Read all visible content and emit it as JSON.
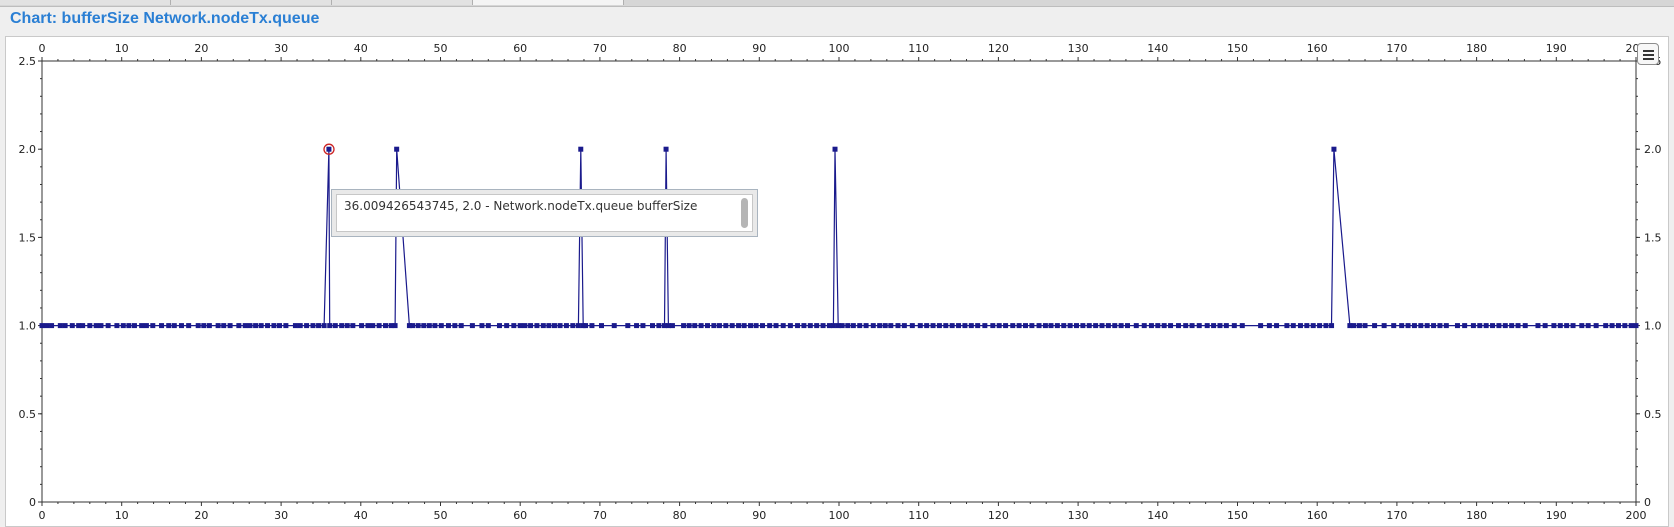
{
  "window": {
    "title": "Chart: bufferSize Network.nodeTx.queue"
  },
  "tooltip": {
    "text": "36.009426543745, 2.0 - Network.nodeTx.queue bufferSize"
  },
  "colors": {
    "series": "#1a1a8c",
    "grid": "#c8c8c8",
    "title": "#2a7fd4",
    "highlight": "#cc2222"
  },
  "chart_data": {
    "type": "line",
    "title": "",
    "xlabel": "",
    "ylabel": "",
    "xlim": [
      0,
      200
    ],
    "ylim": [
      0,
      2.5
    ],
    "xticks": [
      "0",
      "10",
      "20",
      "30",
      "40",
      "50",
      "60",
      "70",
      "80",
      "90",
      "100",
      "110",
      "120",
      "130",
      "140",
      "150",
      "160",
      "170",
      "180",
      "190",
      "200"
    ],
    "yticks": [
      "0",
      "0.5",
      "1.0",
      "1.5",
      "2.0",
      "2.5"
    ],
    "grid": true,
    "markers": "square",
    "series": [
      {
        "name": "Network.nodeTx.queue bufferSize",
        "points": [
          [
            0,
            1
          ],
          [
            0.6,
            1
          ],
          [
            1.2,
            1
          ],
          [
            2.3,
            1
          ],
          [
            2.9,
            1
          ],
          [
            3.8,
            1
          ],
          [
            4.6,
            1
          ],
          [
            5.1,
            1
          ],
          [
            6.0,
            1
          ],
          [
            6.8,
            1
          ],
          [
            7.4,
            1
          ],
          [
            8.3,
            1
          ],
          [
            9.4,
            1
          ],
          [
            10.2,
            1
          ],
          [
            10.9,
            1
          ],
          [
            11.6,
            1
          ],
          [
            12.5,
            1
          ],
          [
            13.1,
            1
          ],
          [
            13.9,
            1
          ],
          [
            15.0,
            1
          ],
          [
            15.9,
            1
          ],
          [
            16.6,
            1
          ],
          [
            17.5,
            1
          ],
          [
            18.4,
            1
          ],
          [
            19.6,
            1
          ],
          [
            20.3,
            1
          ],
          [
            21.0,
            1
          ],
          [
            22.1,
            1
          ],
          [
            22.8,
            1
          ],
          [
            23.6,
            1
          ],
          [
            24.7,
            1
          ],
          [
            25.5,
            1
          ],
          [
            26.1,
            1
          ],
          [
            26.8,
            1
          ],
          [
            27.5,
            1
          ],
          [
            28.3,
            1
          ],
          [
            29.1,
            1
          ],
          [
            29.8,
            1
          ],
          [
            30.6,
            1
          ],
          [
            31.8,
            1
          ],
          [
            32.4,
            1
          ],
          [
            33.2,
            1
          ],
          [
            34.0,
            1
          ],
          [
            34.7,
            1
          ],
          [
            35.4,
            1
          ],
          [
            36.0,
            2
          ],
          [
            36.1,
            1
          ],
          [
            36.8,
            1
          ],
          [
            37.6,
            1
          ],
          [
            38.3,
            1
          ],
          [
            39.0,
            1
          ],
          [
            40.1,
            1
          ],
          [
            40.9,
            1
          ],
          [
            41.5,
            1
          ],
          [
            42.3,
            1
          ],
          [
            43.1,
            1
          ],
          [
            43.8,
            1
          ],
          [
            44.3,
            1
          ],
          [
            44.5,
            2
          ],
          [
            46.1,
            1
          ],
          [
            46.5,
            1
          ],
          [
            47.2,
            1
          ],
          [
            47.9,
            1
          ],
          [
            48.6,
            1
          ],
          [
            49.3,
            1
          ],
          [
            50.1,
            1
          ],
          [
            51.0,
            1
          ],
          [
            51.8,
            1
          ],
          [
            52.6,
            1
          ],
          [
            54.0,
            1
          ],
          [
            55.2,
            1
          ],
          [
            56.0,
            1
          ],
          [
            57.4,
            1
          ],
          [
            58.3,
            1
          ],
          [
            59.2,
            1
          ],
          [
            60.0,
            1
          ],
          [
            60.6,
            1
          ],
          [
            61.3,
            1
          ],
          [
            62.1,
            1
          ],
          [
            62.9,
            1
          ],
          [
            63.6,
            1
          ],
          [
            64.3,
            1
          ],
          [
            65.0,
            1
          ],
          [
            65.8,
            1
          ],
          [
            66.6,
            1
          ],
          [
            67.3,
            1
          ],
          [
            67.6,
            2
          ],
          [
            67.9,
            1
          ],
          [
            68.2,
            1
          ],
          [
            69.0,
            1
          ],
          [
            70.2,
            1
          ],
          [
            71.8,
            1
          ],
          [
            73.5,
            1
          ],
          [
            74.6,
            1
          ],
          [
            75.4,
            1
          ],
          [
            76.6,
            1
          ],
          [
            77.4,
            1
          ],
          [
            78.1,
            1
          ],
          [
            78.3,
            2
          ],
          [
            78.6,
            1
          ],
          [
            79.1,
            1
          ],
          [
            80.5,
            1
          ],
          [
            81.2,
            1
          ],
          [
            81.9,
            1
          ],
          [
            82.7,
            1
          ],
          [
            83.5,
            1
          ],
          [
            84.3,
            1
          ],
          [
            85.0,
            1
          ],
          [
            85.8,
            1
          ],
          [
            86.6,
            1
          ],
          [
            87.4,
            1
          ],
          [
            88.1,
            1
          ],
          [
            88.9,
            1
          ],
          [
            89.6,
            1
          ],
          [
            90.4,
            1
          ],
          [
            91.3,
            1
          ],
          [
            92.1,
            1
          ],
          [
            93.0,
            1
          ],
          [
            93.9,
            1
          ],
          [
            94.8,
            1
          ],
          [
            95.6,
            1
          ],
          [
            96.4,
            1
          ],
          [
            97.2,
            1
          ],
          [
            98.0,
            1
          ],
          [
            98.8,
            1
          ],
          [
            99.3,
            1
          ],
          [
            99.5,
            2
          ],
          [
            99.9,
            1
          ],
          [
            100.4,
            1
          ],
          [
            101.1,
            1
          ],
          [
            101.8,
            1
          ],
          [
            102.6,
            1
          ],
          [
            103.4,
            1
          ],
          [
            104.3,
            1
          ],
          [
            105.1,
            1
          ],
          [
            105.8,
            1
          ],
          [
            106.5,
            1
          ],
          [
            107.4,
            1
          ],
          [
            108.2,
            1
          ],
          [
            109.2,
            1
          ],
          [
            110.2,
            1
          ],
          [
            111.0,
            1
          ],
          [
            111.8,
            1
          ],
          [
            112.6,
            1
          ],
          [
            113.4,
            1
          ],
          [
            114.2,
            1
          ],
          [
            115.0,
            1
          ],
          [
            115.8,
            1
          ],
          [
            116.6,
            1
          ],
          [
            117.4,
            1
          ],
          [
            118.3,
            1
          ],
          [
            119.3,
            1
          ],
          [
            120.1,
            1
          ],
          [
            120.9,
            1
          ],
          [
            121.8,
            1
          ],
          [
            122.6,
            1
          ],
          [
            123.4,
            1
          ],
          [
            124.2,
            1
          ],
          [
            125.1,
            1
          ],
          [
            125.9,
            1
          ],
          [
            126.6,
            1
          ],
          [
            127.4,
            1
          ],
          [
            128.2,
            1
          ],
          [
            129.0,
            1
          ],
          [
            129.8,
            1
          ],
          [
            130.6,
            1
          ],
          [
            131.4,
            1
          ],
          [
            132.2,
            1
          ],
          [
            133.0,
            1
          ],
          [
            133.8,
            1
          ],
          [
            134.6,
            1
          ],
          [
            135.4,
            1
          ],
          [
            136.2,
            1
          ],
          [
            137.3,
            1
          ],
          [
            138.3,
            1
          ],
          [
            139.2,
            1
          ],
          [
            140.0,
            1
          ],
          [
            140.8,
            1
          ],
          [
            141.6,
            1
          ],
          [
            142.6,
            1
          ],
          [
            143.5,
            1
          ],
          [
            144.3,
            1
          ],
          [
            145.2,
            1
          ],
          [
            146.2,
            1
          ],
          [
            147.0,
            1
          ],
          [
            147.8,
            1
          ],
          [
            148.6,
            1
          ],
          [
            149.6,
            1
          ],
          [
            150.6,
            1
          ],
          [
            152.9,
            1
          ],
          [
            154.0,
            1
          ],
          [
            154.9,
            1
          ],
          [
            156.2,
            1
          ],
          [
            157.0,
            1
          ],
          [
            157.9,
            1
          ],
          [
            158.7,
            1
          ],
          [
            159.5,
            1
          ],
          [
            160.3,
            1
          ],
          [
            161.1,
            1
          ],
          [
            161.8,
            1
          ],
          [
            162.1,
            2
          ],
          [
            164.1,
            1
          ],
          [
            164.6,
            1
          ],
          [
            165.3,
            1
          ],
          [
            166.0,
            1
          ],
          [
            167.2,
            1
          ],
          [
            168.4,
            1
          ],
          [
            169.6,
            1
          ],
          [
            170.6,
            1
          ],
          [
            171.4,
            1
          ],
          [
            172.2,
            1
          ],
          [
            173.0,
            1
          ],
          [
            173.8,
            1
          ],
          [
            174.6,
            1
          ],
          [
            175.4,
            1
          ],
          [
            176.2,
            1
          ],
          [
            177.6,
            1
          ],
          [
            178.5,
            1
          ],
          [
            179.6,
            1
          ],
          [
            180.4,
            1
          ],
          [
            181.2,
            1
          ],
          [
            182.0,
            1
          ],
          [
            182.8,
            1
          ],
          [
            183.6,
            1
          ],
          [
            184.4,
            1
          ],
          [
            185.2,
            1
          ],
          [
            186.1,
            1
          ],
          [
            187.7,
            1
          ],
          [
            188.6,
            1
          ],
          [
            189.7,
            1
          ],
          [
            190.5,
            1
          ],
          [
            191.3,
            1
          ],
          [
            192.1,
            1
          ],
          [
            193.2,
            1
          ],
          [
            194.0,
            1
          ],
          [
            195.0,
            1
          ],
          [
            196.2,
            1
          ],
          [
            197.0,
            1
          ],
          [
            197.8,
            1
          ],
          [
            198.6,
            1
          ],
          [
            199.4,
            1
          ],
          [
            200.0,
            1
          ]
        ]
      }
    ],
    "highlighted_point": [
      36.009426543745,
      2.0
    ]
  }
}
